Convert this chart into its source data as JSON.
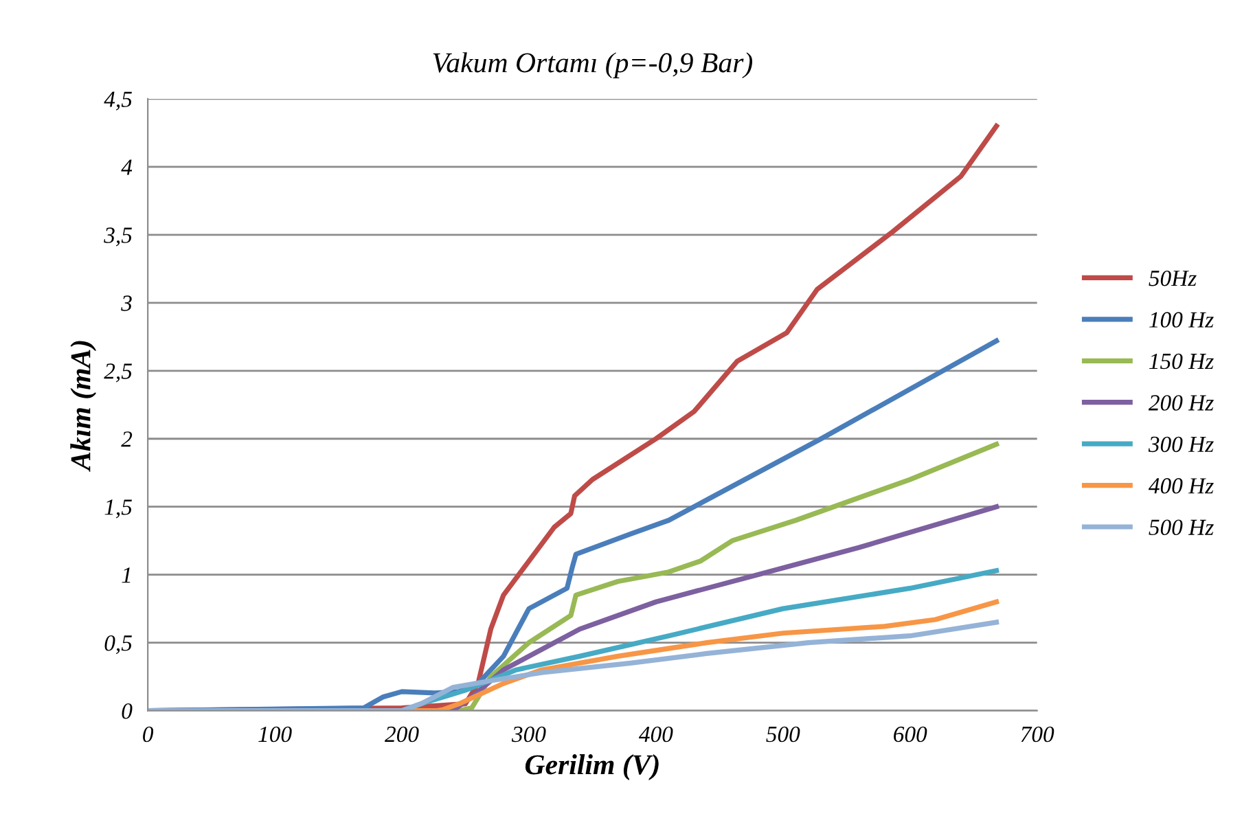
{
  "chart_data": {
    "type": "line",
    "title": "Vakum Ortamı (p=-0,9 Bar)",
    "xlabel": "Gerilim (V)",
    "ylabel": "Akım (mA)",
    "xlim": [
      0,
      700
    ],
    "xticks": [
      0,
      100,
      200,
      300,
      400,
      500,
      600,
      700
    ],
    "ylim": [
      0,
      4.5
    ],
    "yticks": [
      {
        "value": 0,
        "label": "0"
      },
      {
        "value": 0.5,
        "label": "0,5"
      },
      {
        "value": 1,
        "label": "1"
      },
      {
        "value": 1.5,
        "label": "1,5"
      },
      {
        "value": 2,
        "label": "2"
      },
      {
        "value": 2.5,
        "label": "2,5"
      },
      {
        "value": 3,
        "label": "3"
      },
      {
        "value": 3.5,
        "label": "3,5"
      },
      {
        "value": 4,
        "label": "4"
      },
      {
        "value": 4.5,
        "label": "4,5"
      }
    ],
    "grid": "y",
    "legend": "right",
    "marker": "none",
    "line_style": "solid",
    "series": [
      {
        "name": "50Hz",
        "color": "#be4b48",
        "x": [
          0,
          100,
          200,
          250,
          260,
          270,
          280,
          300,
          320,
          333,
          336,
          350,
          400,
          430,
          464,
          503,
          527,
          586,
          640,
          668
        ],
        "values": [
          0,
          0.01,
          0.02,
          0.05,
          0.2,
          0.6,
          0.85,
          1.1,
          1.35,
          1.45,
          1.58,
          1.7,
          2.0,
          2.2,
          2.57,
          2.78,
          3.1,
          3.52,
          3.93,
          4.3
        ]
      },
      {
        "name": "100 Hz",
        "color": "#4a7ebb",
        "x": [
          0,
          170,
          185,
          200,
          226,
          245,
          260,
          280,
          300,
          330,
          334,
          337,
          380,
          410,
          440,
          530,
          668
        ],
        "values": [
          0,
          0.02,
          0.1,
          0.14,
          0.13,
          0.14,
          0.2,
          0.4,
          0.75,
          0.9,
          1.05,
          1.15,
          1.3,
          1.4,
          1.55,
          2.0,
          2.72
        ]
      },
      {
        "name": "150 Hz",
        "color": "#98b954",
        "x": [
          0,
          245,
          255,
          270,
          300,
          333,
          337,
          370,
          410,
          435,
          460,
          510,
          600,
          668
        ],
        "values": [
          0,
          0,
          0.02,
          0.25,
          0.5,
          0.7,
          0.85,
          0.95,
          1.02,
          1.1,
          1.25,
          1.4,
          1.7,
          1.96
        ]
      },
      {
        "name": "200 Hz",
        "color": "#7d60a0",
        "x": [
          0,
          240,
          255,
          280,
          310,
          340,
          400,
          480,
          560,
          668
        ],
        "values": [
          0,
          0,
          0.1,
          0.3,
          0.45,
          0.6,
          0.8,
          1.0,
          1.2,
          1.5
        ]
      },
      {
        "name": "300 Hz",
        "color": "#46aac5",
        "x": [
          0,
          200,
          215,
          250,
          290,
          340,
          410,
          500,
          600,
          668
        ],
        "values": [
          0,
          0,
          0.05,
          0.15,
          0.3,
          0.4,
          0.55,
          0.75,
          0.9,
          1.03
        ]
      },
      {
        "name": "400 Hz",
        "color": "#f79646",
        "x": [
          0,
          230,
          245,
          280,
          310,
          370,
          440,
          500,
          580,
          620,
          668
        ],
        "values": [
          0,
          0,
          0.05,
          0.2,
          0.3,
          0.4,
          0.5,
          0.57,
          0.62,
          0.67,
          0.8
        ]
      },
      {
        "name": "500 Hz",
        "color": "#95b3d7",
        "x": [
          0,
          200,
          215,
          240,
          270,
          310,
          380,
          440,
          520,
          600,
          668
        ],
        "values": [
          0,
          0,
          0.05,
          0.17,
          0.22,
          0.28,
          0.35,
          0.42,
          0.5,
          0.55,
          0.65
        ]
      }
    ]
  }
}
